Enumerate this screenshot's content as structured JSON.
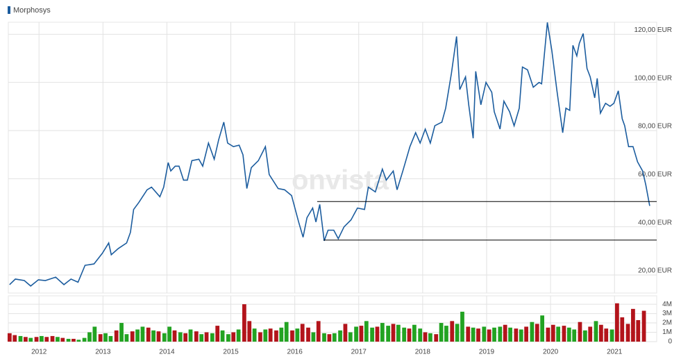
{
  "chart_data": [
    {
      "type": "line",
      "watermark": "onvista",
      "xlim": [
        2011.52,
        2021.66
      ],
      "xticks": [
        2012,
        2013,
        2014,
        2015,
        2016,
        2017,
        2018,
        2019,
        2020,
        2021
      ],
      "ylim": [
        12.5,
        125
      ],
      "yticks": [
        {
          "value": 20,
          "label": "20,00 EUR"
        },
        {
          "value": 40,
          "label": "40,00 EUR"
        },
        {
          "value": 60,
          "label": "60,00 EUR"
        },
        {
          "value": 80,
          "label": "80,00 EUR"
        },
        {
          "value": 100,
          "label": "100,00 EUR"
        },
        {
          "value": 120,
          "label": "120,00 EUR"
        }
      ],
      "grid": true,
      "series": [
        {
          "name": "Morphosys",
          "color": "#1b5c9e",
          "x": [
            2011.54,
            2011.63,
            2011.77,
            2011.87,
            2011.99,
            2012.1,
            2012.26,
            2012.39,
            2012.5,
            2012.61,
            2012.72,
            2012.86,
            2012.99,
            2013.09,
            2013.13,
            2013.24,
            2013.37,
            2013.43,
            2013.48,
            2013.56,
            2013.69,
            2013.76,
            2013.89,
            2013.95,
            2014.02,
            2014.06,
            2014.13,
            2014.19,
            2014.26,
            2014.32,
            2014.39,
            2014.5,
            2014.56,
            2014.65,
            2014.74,
            2014.81,
            2014.89,
            2014.95,
            2015.04,
            2015.13,
            2015.19,
            2015.25,
            2015.32,
            2015.43,
            2015.54,
            2015.6,
            2015.74,
            2015.84,
            2015.95,
            2016.06,
            2016.13,
            2016.19,
            2016.28,
            2016.33,
            2016.39,
            2016.46,
            2016.52,
            2016.61,
            2016.68,
            2016.77,
            2016.88,
            2016.98,
            2017.09,
            2017.15,
            2017.26,
            2017.37,
            2017.43,
            2017.54,
            2017.6,
            2017.69,
            2017.8,
            2017.89,
            2017.96,
            2018.04,
            2018.12,
            2018.19,
            2018.3,
            2018.36,
            2018.45,
            2018.53,
            2018.58,
            2018.67,
            2018.72,
            2018.79,
            2018.83,
            2018.91,
            2018.99,
            2019.08,
            2019.12,
            2019.21,
            2019.27,
            2019.36,
            2019.43,
            2019.51,
            2019.56,
            2019.64,
            2019.73,
            2019.82,
            2019.86,
            2019.95,
            2020.02,
            2020.1,
            2020.19,
            2020.24,
            2020.3,
            2020.35,
            2020.41,
            2020.45,
            2020.51,
            2020.57,
            2020.62,
            2020.69,
            2020.73,
            2020.78,
            2020.86,
            2020.93,
            2020.99,
            2021.06,
            2021.12,
            2021.16,
            2021.22,
            2021.29,
            2021.36,
            2021.44,
            2021.49,
            2021.55
          ],
          "values": [
            16,
            18.3,
            17.7,
            15.4,
            18,
            17.7,
            19.1,
            16,
            18.3,
            17,
            24,
            24.6,
            29,
            33.3,
            28.4,
            31,
            33.3,
            37.7,
            47.2,
            50.1,
            55.4,
            56.5,
            52.5,
            56.5,
            66.7,
            63.2,
            65.2,
            65.2,
            59.4,
            59.4,
            67.5,
            68.1,
            65.2,
            74.8,
            68.1,
            76.2,
            83.5,
            74.8,
            73.3,
            73.9,
            69.9,
            55.9,
            64.6,
            67.5,
            73.3,
            61.7,
            55.9,
            55.4,
            53,
            42,
            35.7,
            43.8,
            47.8,
            42,
            49.3,
            34.2,
            38.6,
            38.6,
            35.1,
            40,
            42.9,
            47.8,
            47.2,
            56.5,
            54.5,
            64,
            59.4,
            63.2,
            55.4,
            63.2,
            73.3,
            79.1,
            74.8,
            80.6,
            74.8,
            82,
            83.5,
            89.3,
            103.8,
            119.1,
            97,
            102.3,
            90.7,
            76.8,
            104.6,
            90.7,
            100,
            95.9,
            87.8,
            80.6,
            92.2,
            87.8,
            82,
            89.3,
            106.4,
            105.2,
            98,
            100,
            99.4,
            124.9,
            113.3,
            96.5,
            79.1,
            89.3,
            88.4,
            115.4,
            111,
            116.2,
            120.3,
            105.8,
            102.3,
            93.6,
            101.7,
            87.2,
            91.3,
            90.1,
            91.3,
            96.5,
            84.9,
            82,
            73.3,
            73.3,
            67,
            63.2,
            57.4,
            48.7
          ]
        }
      ],
      "reference_lines": [
        {
          "value": 50.5,
          "x": [
            2016.35,
            2021.66
          ]
        },
        {
          "value": 34.5,
          "x": [
            2016.45,
            2021.66
          ]
        }
      ]
    },
    {
      "type": "bar",
      "xlim": [
        2011.52,
        2021.66
      ],
      "ylim": [
        0,
        4.9
      ],
      "yticks": [
        0,
        {
          "value": 1,
          "label": "1M"
        },
        {
          "value": 2,
          "label": "2M"
        },
        {
          "value": 3,
          "label": "3M"
        },
        {
          "value": 4,
          "label": "4M"
        }
      ],
      "colors": {
        "up": "#22a322",
        "down": "#b3141b"
      },
      "x": [
        2011.54,
        2011.62,
        2011.71,
        2011.79,
        2011.87,
        2011.96,
        2012.04,
        2012.12,
        2012.21,
        2012.29,
        2012.37,
        2012.46,
        2012.54,
        2012.62,
        2012.71,
        2012.79,
        2012.87,
        2012.96,
        2013.04,
        2013.12,
        2013.21,
        2013.29,
        2013.37,
        2013.46,
        2013.54,
        2013.62,
        2013.71,
        2013.79,
        2013.87,
        2013.96,
        2014.04,
        2014.12,
        2014.21,
        2014.29,
        2014.37,
        2014.46,
        2014.54,
        2014.62,
        2014.71,
        2014.79,
        2014.87,
        2014.96,
        2015.04,
        2015.12,
        2015.21,
        2015.29,
        2015.37,
        2015.46,
        2015.54,
        2015.62,
        2015.71,
        2015.79,
        2015.87,
        2015.96,
        2016.04,
        2016.12,
        2016.21,
        2016.29,
        2016.37,
        2016.46,
        2016.54,
        2016.62,
        2016.71,
        2016.79,
        2016.87,
        2016.96,
        2017.04,
        2017.12,
        2017.21,
        2017.29,
        2017.37,
        2017.46,
        2017.54,
        2017.62,
        2017.71,
        2017.79,
        2017.87,
        2017.96,
        2018.04,
        2018.12,
        2018.21,
        2018.29,
        2018.37,
        2018.46,
        2018.54,
        2018.62,
        2018.71,
        2018.79,
        2018.87,
        2018.96,
        2019.04,
        2019.12,
        2019.21,
        2019.29,
        2019.37,
        2019.46,
        2019.54,
        2019.62,
        2019.71,
        2019.79,
        2019.87,
        2019.96,
        2020.04,
        2020.12,
        2020.21,
        2020.29,
        2020.37,
        2020.46,
        2020.54,
        2020.62,
        2020.71,
        2020.79,
        2020.87,
        2020.96,
        2021.04,
        2021.12,
        2021.21,
        2021.29,
        2021.37,
        2021.46
      ],
      "values": [
        0.9,
        0.7,
        0.6,
        0.5,
        0.4,
        0.5,
        0.6,
        0.5,
        0.6,
        0.5,
        0.4,
        0.3,
        0.3,
        0.2,
        0.4,
        1.0,
        1.6,
        0.8,
        0.9,
        0.6,
        1.2,
        2.0,
        0.8,
        1.1,
        1.3,
        1.6,
        1.5,
        1.2,
        1.1,
        0.9,
        1.6,
        1.2,
        1.0,
        0.9,
        1.3,
        1.1,
        0.8,
        1.0,
        0.9,
        1.7,
        1.2,
        0.8,
        1.0,
        1.3,
        4.0,
        2.2,
        1.4,
        1.0,
        1.3,
        1.4,
        1.2,
        1.5,
        2.1,
        1.2,
        1.4,
        1.9,
        1.5,
        1.0,
        2.2,
        0.9,
        0.8,
        0.9,
        1.2,
        1.9,
        1.0,
        1.6,
        1.7,
        2.2,
        1.5,
        1.6,
        2.0,
        1.7,
        1.9,
        1.8,
        1.5,
        1.4,
        1.8,
        1.4,
        1.0,
        0.9,
        0.8,
        2.0,
        1.7,
        2.2,
        1.9,
        3.2,
        1.6,
        1.5,
        1.4,
        1.6,
        1.3,
        1.5,
        1.6,
        1.8,
        1.5,
        1.4,
        1.3,
        1.6,
        2.1,
        1.9,
        2.8,
        1.5,
        1.8,
        1.6,
        1.7,
        1.5,
        1.3,
        2.1,
        1.2,
        1.6,
        2.2,
        1.8,
        1.4,
        1.3,
        4.1,
        2.6,
        1.9,
        3.5,
        2.3,
        3.3
      ],
      "direction": [
        "down",
        "down",
        "up",
        "down",
        "up",
        "down",
        "up",
        "down",
        "down",
        "up",
        "down",
        "up",
        "down",
        "up",
        "up",
        "up",
        "up",
        "down",
        "up",
        "up",
        "down",
        "up",
        "up",
        "down",
        "up",
        "up",
        "down",
        "up",
        "down",
        "up",
        "up",
        "down",
        "up",
        "down",
        "up",
        "down",
        "up",
        "down",
        "up",
        "down",
        "up",
        "up",
        "down",
        "up",
        "down",
        "down",
        "up",
        "down",
        "up",
        "down",
        "down",
        "up",
        "up",
        "down",
        "up",
        "down",
        "down",
        "up",
        "down",
        "up",
        "down",
        "up",
        "up",
        "down",
        "up",
        "up",
        "down",
        "up",
        "up",
        "down",
        "up",
        "up",
        "down",
        "up",
        "up",
        "down",
        "up",
        "up",
        "down",
        "up",
        "down",
        "up",
        "up",
        "down",
        "up",
        "up",
        "down",
        "up",
        "down",
        "up",
        "down",
        "up",
        "up",
        "down",
        "up",
        "down",
        "up",
        "down",
        "up",
        "down",
        "up",
        "down",
        "down",
        "up",
        "down",
        "up",
        "up",
        "down",
        "up",
        "down",
        "up",
        "down",
        "down",
        "up",
        "down",
        "down",
        "down",
        "down",
        "down",
        "down"
      ]
    }
  ]
}
